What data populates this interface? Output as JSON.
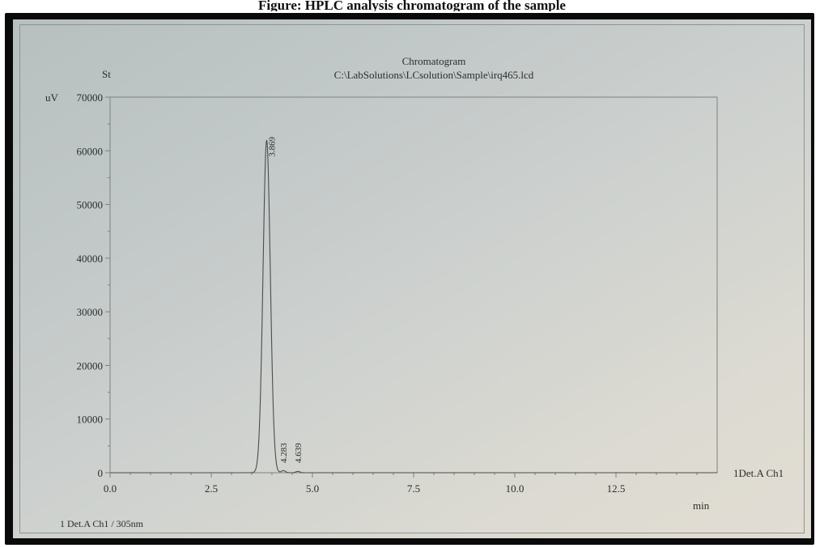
{
  "header": {
    "title": "Figure: HPLC analysis chromatogram of the sample"
  },
  "chart_data": {
    "type": "line",
    "title": "Chromatogram",
    "subtitle": "C:\\LabSolutions\\LCsolution\\Sample\\irq465.lcd",
    "corner_label": "St",
    "ylabel": "uV",
    "xlabel": "min",
    "xlim": [
      0.0,
      15.0
    ],
    "ylim": [
      0,
      70000
    ],
    "x_ticks": [
      "0.0",
      "2.5",
      "5.0",
      "7.5",
      "10.0",
      "12.5"
    ],
    "y_ticks": [
      "0",
      "10000",
      "20000",
      "30000",
      "40000",
      "50000",
      "60000",
      "70000"
    ],
    "grid": false,
    "trace_label": "1Det.A Ch1",
    "legend": "1   Det.A Ch1 / 305nm",
    "peaks": [
      {
        "rt": 3.869,
        "label": "3.869",
        "height": 62000,
        "width": 0.09
      },
      {
        "rt": 4.283,
        "label": "4.283",
        "height": 400,
        "width": 0.05
      },
      {
        "rt": 4.639,
        "label": "4.639",
        "height": 250,
        "width": 0.05
      }
    ],
    "colors": {
      "trace": "#4a4d4c",
      "ink": "#2a2d2c",
      "axis": "#7d8280"
    }
  }
}
